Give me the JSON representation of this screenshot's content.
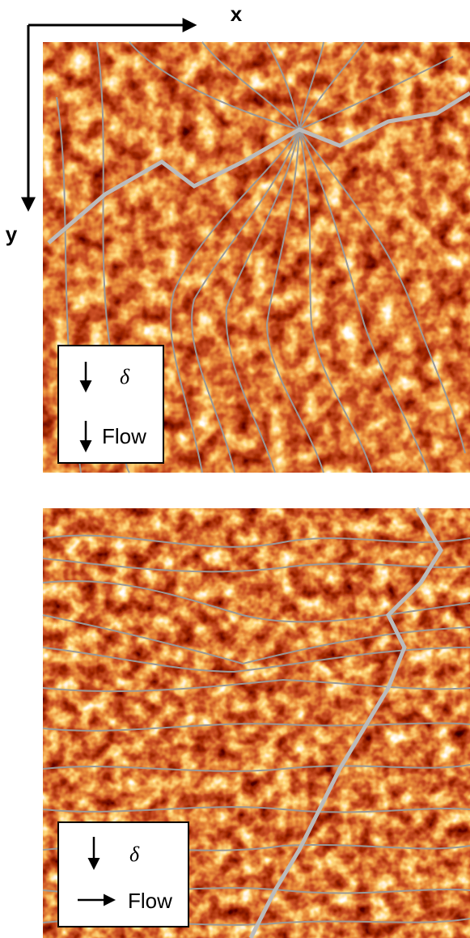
{
  "axes": {
    "x": "x",
    "y": "y"
  },
  "panels": [
    {
      "legend": {
        "delta": "δ⃗",
        "flow": "Flow"
      }
    },
    {
      "legend": {
        "delta": "δ⃗",
        "flow": "Flow"
      }
    }
  ]
}
